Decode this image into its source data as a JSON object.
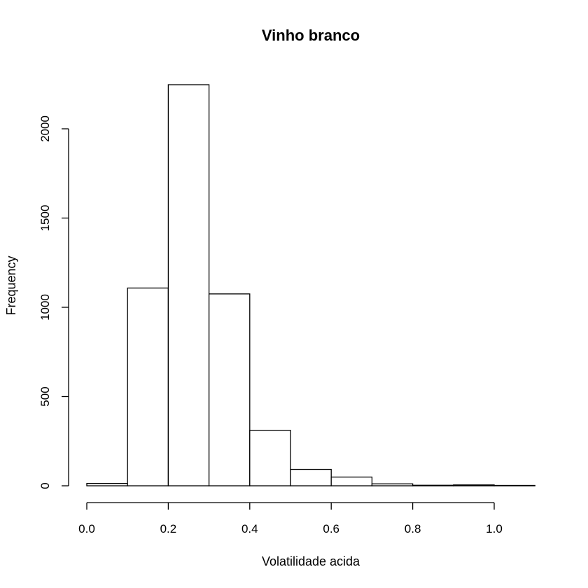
{
  "chart_data": {
    "type": "bar",
    "title": "Vinho branco",
    "xlabel": "Volatilidade acida",
    "ylabel": "Frequency",
    "bins": [
      {
        "x0": 0.0,
        "x1": 0.1,
        "count": 13
      },
      {
        "x0": 0.1,
        "x1": 0.2,
        "count": 1108
      },
      {
        "x0": 0.2,
        "x1": 0.3,
        "count": 2247
      },
      {
        "x0": 0.3,
        "x1": 0.4,
        "count": 1075
      },
      {
        "x0": 0.4,
        "x1": 0.5,
        "count": 311
      },
      {
        "x0": 0.5,
        "x1": 0.6,
        "count": 92
      },
      {
        "x0": 0.6,
        "x1": 0.7,
        "count": 49
      },
      {
        "x0": 0.7,
        "x1": 0.8,
        "count": 11
      },
      {
        "x0": 0.8,
        "x1": 0.9,
        "count": 3
      },
      {
        "x0": 0.9,
        "x1": 1.0,
        "count": 5
      },
      {
        "x0": 1.0,
        "x1": 1.1,
        "count": 2
      }
    ],
    "xticks": [
      "0.0",
      "0.2",
      "0.4",
      "0.6",
      "0.8",
      "1.0"
    ],
    "yticks": [
      "0",
      "500",
      "1000",
      "1500",
      "2000"
    ],
    "xlim": [
      0.0,
      1.1
    ],
    "ylim": [
      0,
      2247
    ],
    "grid": false,
    "legend": false
  }
}
